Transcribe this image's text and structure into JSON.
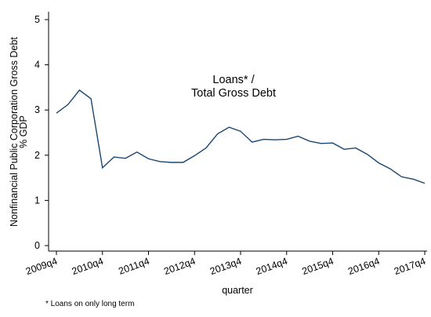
{
  "chart_data": {
    "type": "line",
    "title": "",
    "annotation": [
      "Loans* /",
      "Total Gross Debt"
    ],
    "xlabel": "quarter",
    "ylabel": [
      "Nonfinancial Public Corporation Gross Debt",
      "% GDP"
    ],
    "ylim": [
      0,
      5
    ],
    "yticks": [
      0,
      1,
      2,
      3,
      4,
      5
    ],
    "xtick_labels": [
      "2009q4",
      "2010q4",
      "2011q4",
      "2012q4",
      "2013q4",
      "2014q4",
      "2015q4",
      "2016q4",
      "2017q4"
    ],
    "grid": false,
    "line_color": "#1a476f",
    "series": [
      {
        "x": [
          "2009q4",
          "2010q1",
          "2010q2",
          "2010q3",
          "2010q4",
          "2011q1",
          "2011q2",
          "2011q3",
          "2011q4",
          "2012q1",
          "2012q2",
          "2012q3",
          "2012q4",
          "2013q1",
          "2013q2",
          "2013q3",
          "2013q4",
          "2014q1",
          "2014q2",
          "2014q3",
          "2014q4",
          "2015q1",
          "2015q2",
          "2015q3",
          "2015q4",
          "2016q1",
          "2016q2",
          "2016q3",
          "2016q4",
          "2017q1",
          "2017q2",
          "2017q3",
          "2017q4"
        ],
        "values": [
          2.93,
          3.12,
          3.44,
          3.25,
          1.72,
          1.96,
          1.93,
          2.07,
          1.92,
          1.86,
          1.84,
          1.84,
          1.99,
          2.16,
          2.47,
          2.62,
          2.53,
          2.29,
          2.35,
          2.34,
          2.35,
          2.42,
          2.31,
          2.26,
          2.27,
          2.13,
          2.16,
          2.02,
          1.83,
          1.7,
          1.52,
          1.47,
          1.38
        ]
      }
    ]
  },
  "footnote": "* Loans on only long term"
}
